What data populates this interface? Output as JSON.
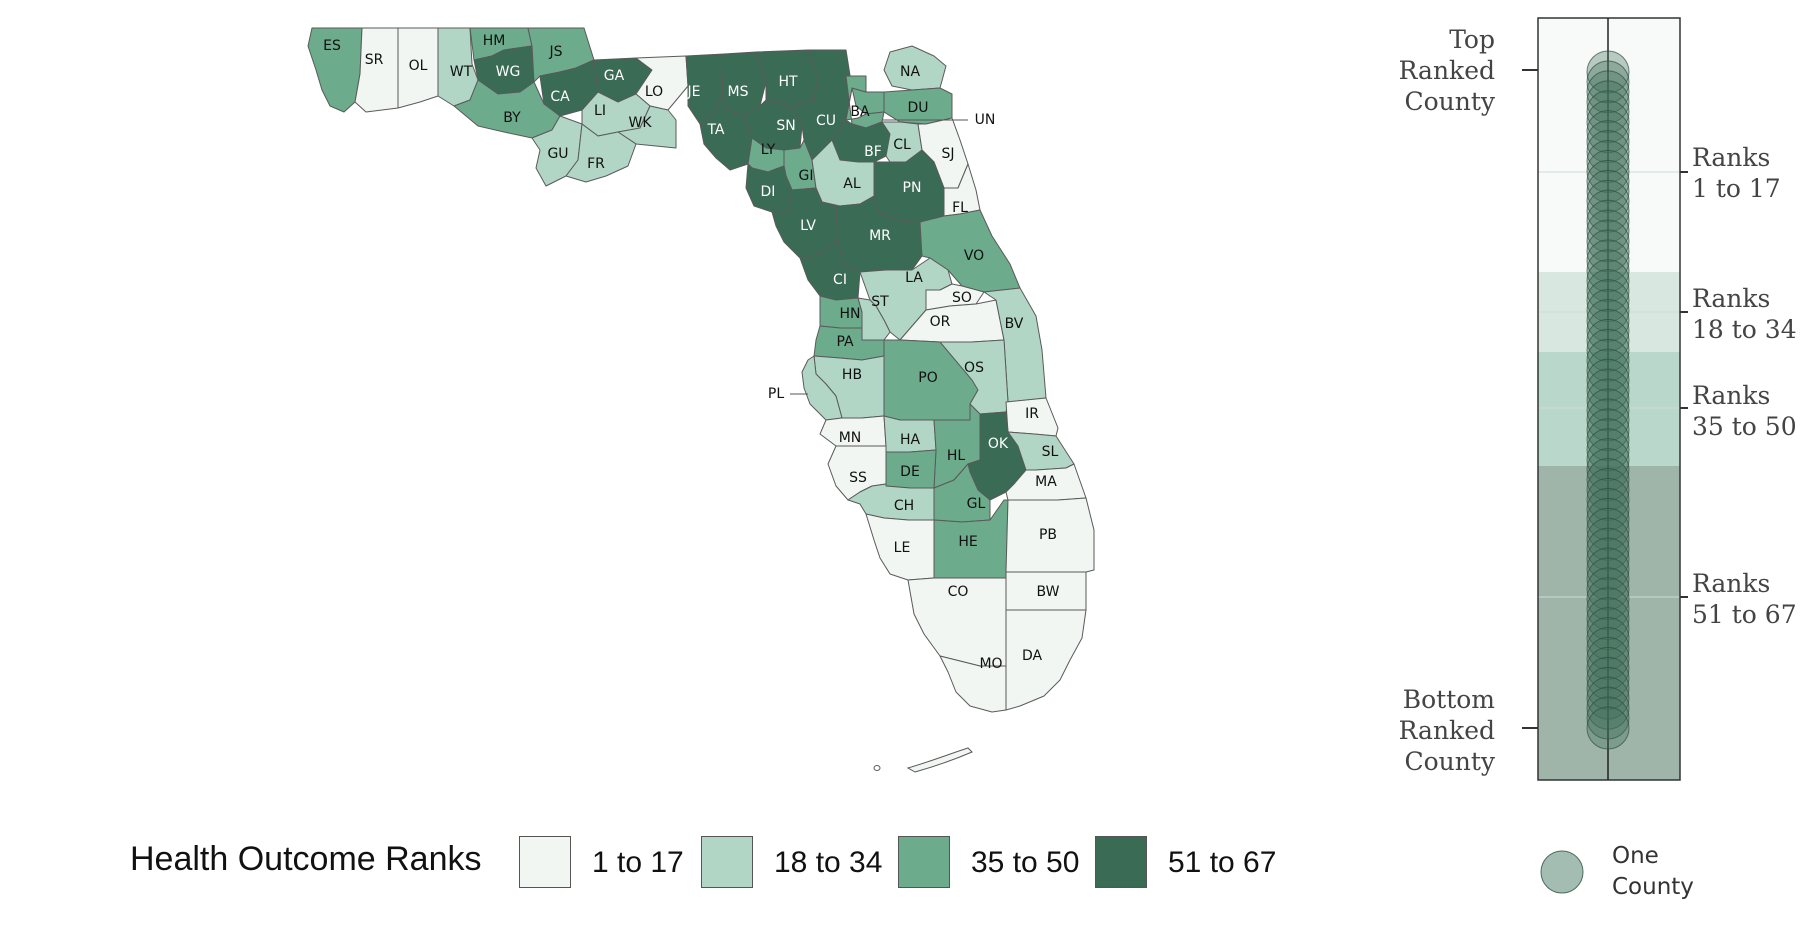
{
  "legend": {
    "title": "Health Outcome Ranks",
    "bins": [
      {
        "label": "1 to 17",
        "color": "#f1f6f3"
      },
      {
        "label": "18 to 34",
        "color": "#b2d6c6"
      },
      {
        "label": "35 to 50",
        "color": "#6cab8c"
      },
      {
        "label": "51 to 67",
        "color": "#3a6b55"
      }
    ]
  },
  "strip": {
    "top_label": [
      "Top",
      "Ranked",
      "County"
    ],
    "bottom_label": [
      "Bottom",
      "Ranked",
      "County"
    ],
    "range_labels": [
      [
        "Ranks",
        "1 to 17"
      ],
      [
        "Ranks",
        "18 to 34"
      ],
      [
        "Ranks",
        "35 to 50"
      ],
      [
        "Ranks",
        "51 to 67"
      ]
    ],
    "one_county": [
      "One",
      "County"
    ],
    "dot_color": "#3f6e59"
  },
  "counties": [
    {
      "abbr": "ES",
      "bin": 3
    },
    {
      "abbr": "SR",
      "bin": 1
    },
    {
      "abbr": "OL",
      "bin": 1
    },
    {
      "abbr": "WT",
      "bin": 2
    },
    {
      "abbr": "HM",
      "bin": 3
    },
    {
      "abbr": "WG",
      "bin": 4
    },
    {
      "abbr": "JS",
      "bin": 3
    },
    {
      "abbr": "CA",
      "bin": 4
    },
    {
      "abbr": "GA",
      "bin": 4
    },
    {
      "abbr": "LO",
      "bin": 1
    },
    {
      "abbr": "LI",
      "bin": 2
    },
    {
      "abbr": "WK",
      "bin": 2
    },
    {
      "abbr": "BY",
      "bin": 3
    },
    {
      "abbr": "GU",
      "bin": 2
    },
    {
      "abbr": "FR",
      "bin": 2
    },
    {
      "abbr": "JE",
      "bin": 4
    },
    {
      "abbr": "MS",
      "bin": 4
    },
    {
      "abbr": "HT",
      "bin": 4
    },
    {
      "abbr": "TA",
      "bin": 4
    },
    {
      "abbr": "SN",
      "bin": 4
    },
    {
      "abbr": "CU",
      "bin": 4
    },
    {
      "abbr": "LY",
      "bin": 3
    },
    {
      "abbr": "NA",
      "bin": 2
    },
    {
      "abbr": "DU",
      "bin": 3
    },
    {
      "abbr": "UN",
      "bin": 3
    },
    {
      "abbr": "BA",
      "bin": 3
    },
    {
      "abbr": "BF",
      "bin": 4
    },
    {
      "abbr": "CL",
      "bin": 2
    },
    {
      "abbr": "SJ",
      "bin": 1
    },
    {
      "abbr": "GI",
      "bin": 3
    },
    {
      "abbr": "AL",
      "bin": 2
    },
    {
      "abbr": "PN",
      "bin": 4
    },
    {
      "abbr": "DI",
      "bin": 4
    },
    {
      "abbr": "LV",
      "bin": 4
    },
    {
      "abbr": "MR",
      "bin": 4
    },
    {
      "abbr": "FL",
      "bin": 1
    },
    {
      "abbr": "VO",
      "bin": 3
    },
    {
      "abbr": "CI",
      "bin": 4
    },
    {
      "abbr": "LA",
      "bin": 2
    },
    {
      "abbr": "HN",
      "bin": 3
    },
    {
      "abbr": "ST",
      "bin": 2
    },
    {
      "abbr": "SO",
      "bin": 1
    },
    {
      "abbr": "OR",
      "bin": 1
    },
    {
      "abbr": "BV",
      "bin": 2
    },
    {
      "abbr": "PA",
      "bin": 3
    },
    {
      "abbr": "HB",
      "bin": 2
    },
    {
      "abbr": "PL",
      "bin": 2
    },
    {
      "abbr": "PO",
      "bin": 3
    },
    {
      "abbr": "OS",
      "bin": 2
    },
    {
      "abbr": "IR",
      "bin": 1
    },
    {
      "abbr": "MN",
      "bin": 1
    },
    {
      "abbr": "HA",
      "bin": 2
    },
    {
      "abbr": "HL",
      "bin": 3
    },
    {
      "abbr": "OK",
      "bin": 4
    },
    {
      "abbr": "SL",
      "bin": 2
    },
    {
      "abbr": "SS",
      "bin": 1
    },
    {
      "abbr": "DE",
      "bin": 3
    },
    {
      "abbr": "MA",
      "bin": 1
    },
    {
      "abbr": "CH",
      "bin": 2
    },
    {
      "abbr": "GL",
      "bin": 3
    },
    {
      "abbr": "LE",
      "bin": 1
    },
    {
      "abbr": "HE",
      "bin": 3
    },
    {
      "abbr": "PB",
      "bin": 1
    },
    {
      "abbr": "CO",
      "bin": 1
    },
    {
      "abbr": "BW",
      "bin": 1
    },
    {
      "abbr": "MO",
      "bin": 1
    },
    {
      "abbr": "DA",
      "bin": 1
    }
  ]
}
